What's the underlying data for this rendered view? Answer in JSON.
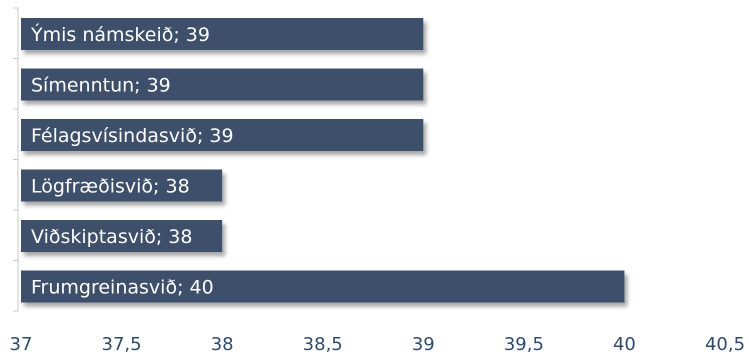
{
  "chart_data": {
    "type": "bar",
    "orientation": "horizontal",
    "categories": [
      "Ýmis námskeið",
      "Símenntun",
      "Félagsvísindasvið",
      "Lögfræðisvið",
      "Viðskiptasvið",
      "Frumgreinasvið"
    ],
    "values": [
      39,
      39,
      39,
      38,
      38,
      40
    ],
    "data_labels": [
      "Ýmis námskeið; 39",
      "Símenntun; 39",
      "Félagsvísindasvið; 39",
      "Lögfræðisvið; 38",
      "Viðskiptasvið; 38",
      "Frumgreinasvið; 40"
    ],
    "xlim": [
      37,
      40.5
    ],
    "x_ticks": [
      "37",
      "37,5",
      "38",
      "38,5",
      "39",
      "39,5",
      "40",
      "40,5"
    ],
    "x_tick_values": [
      37,
      37.5,
      38,
      38.5,
      39,
      39.5,
      40,
      40.5
    ],
    "title": "",
    "xlabel": "",
    "ylabel": "",
    "legend": "none",
    "grid": false,
    "colors": {
      "bar": "#3d4f6b",
      "tick_text": "#2f4a6b",
      "axis": "#c8c8c8",
      "shadow": "#a8a8a8"
    }
  }
}
